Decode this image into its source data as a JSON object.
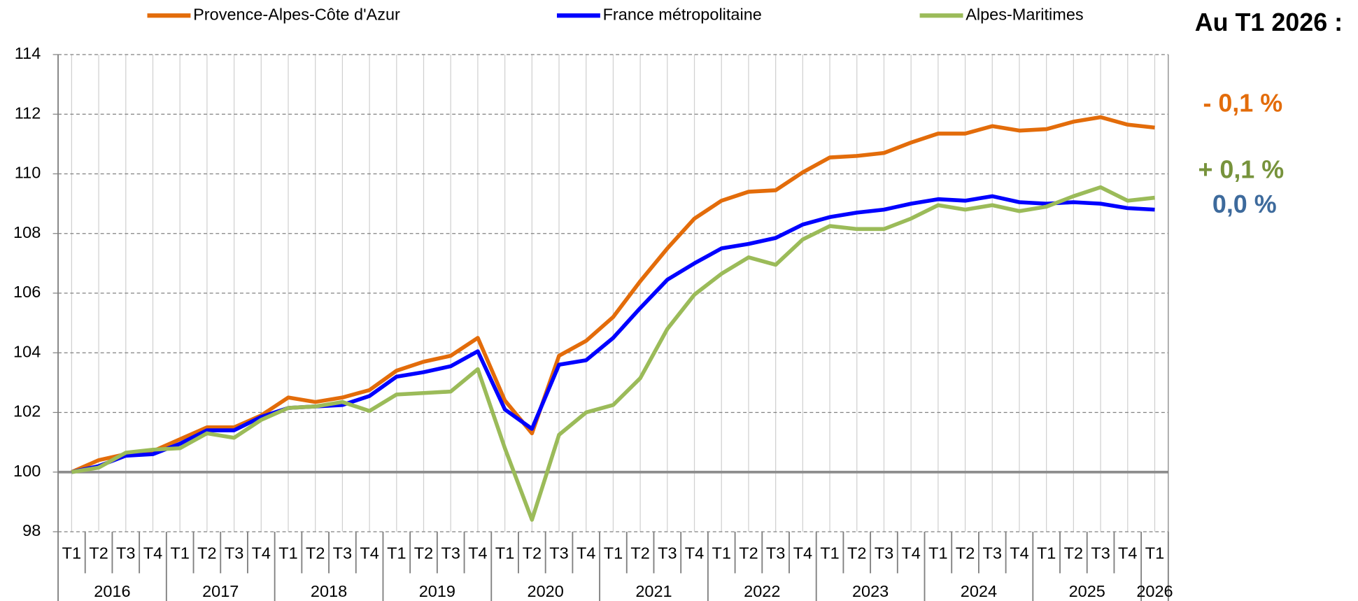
{
  "chart_data": {
    "type": "line",
    "categories": [
      "T1",
      "T2",
      "T3",
      "T4",
      "T1",
      "T2",
      "T3",
      "T4",
      "T1",
      "T2",
      "T3",
      "T4",
      "T1",
      "T2",
      "T3",
      "T4",
      "T1",
      "T2",
      "T3",
      "T4",
      "T1",
      "T2",
      "T3",
      "T4",
      "T1",
      "T2",
      "T3",
      "T4",
      "T1",
      "T2",
      "T3",
      "T4",
      "T1",
      "T2",
      "T3",
      "T4",
      "T1",
      "T2",
      "T3",
      "T4",
      "T1"
    ],
    "years": [
      "2016",
      "2017",
      "2018",
      "2019",
      "2020",
      "2021",
      "2022",
      "2023",
      "2024",
      "2025",
      "2026"
    ],
    "series": [
      {
        "name": "Provence-Alpes-Côte d'Azur",
        "color": "#e36c0a",
        "values": [
          100.0,
          100.4,
          100.6,
          100.7,
          101.1,
          101.5,
          101.5,
          101.9,
          102.5,
          102.35,
          102.5,
          102.75,
          103.4,
          103.7,
          103.9,
          104.5,
          102.4,
          101.3,
          103.9,
          104.4,
          105.2,
          106.4,
          107.5,
          108.5,
          109.1,
          109.4,
          109.45,
          110.05,
          110.55,
          110.6,
          110.7,
          111.05,
          111.35,
          111.35,
          111.6,
          111.45,
          111.5,
          111.75,
          111.9,
          111.65,
          111.55
        ]
      },
      {
        "name": "France métropolitaine",
        "color": "#0000ff",
        "values": [
          100.0,
          100.2,
          100.55,
          100.6,
          100.95,
          101.4,
          101.4,
          101.85,
          102.15,
          102.2,
          102.25,
          102.55,
          103.2,
          103.35,
          103.55,
          104.05,
          102.1,
          101.45,
          103.6,
          103.75,
          104.5,
          105.5,
          106.45,
          107.0,
          107.5,
          107.65,
          107.85,
          108.3,
          108.55,
          108.7,
          108.8,
          109.0,
          109.15,
          109.1,
          109.25,
          109.05,
          109.0,
          109.05,
          109.0,
          108.85,
          108.8
        ]
      },
      {
        "name": "Alpes-Maritimes",
        "color": "#9bbb59",
        "values": [
          100.0,
          100.15,
          100.65,
          100.75,
          100.8,
          101.3,
          101.15,
          101.75,
          102.15,
          102.2,
          102.35,
          102.05,
          102.6,
          102.65,
          102.7,
          103.45,
          100.8,
          98.4,
          101.25,
          102.0,
          102.25,
          103.15,
          104.8,
          105.95,
          106.65,
          107.2,
          106.95,
          107.8,
          108.25,
          108.15,
          108.15,
          108.5,
          108.95,
          108.8,
          108.95,
          108.75,
          108.9,
          109.25,
          109.55,
          109.1,
          109.2
        ]
      }
    ],
    "ylim": [
      98,
      114
    ],
    "yticks": [
      98,
      100,
      102,
      104,
      106,
      108,
      110,
      112,
      114
    ],
    "grid": true,
    "baseline": 100,
    "legend": "top",
    "annotations": [
      {
        "text": "Au T1 2026 :",
        "color": "#000000"
      },
      {
        "text": "- 0,1 %",
        "color": "#e36c0a"
      },
      {
        "text": "+ 0,1 %",
        "color": "#77933c"
      },
      {
        "text": "0,0 %",
        "color": "#3d6a9c"
      }
    ]
  }
}
